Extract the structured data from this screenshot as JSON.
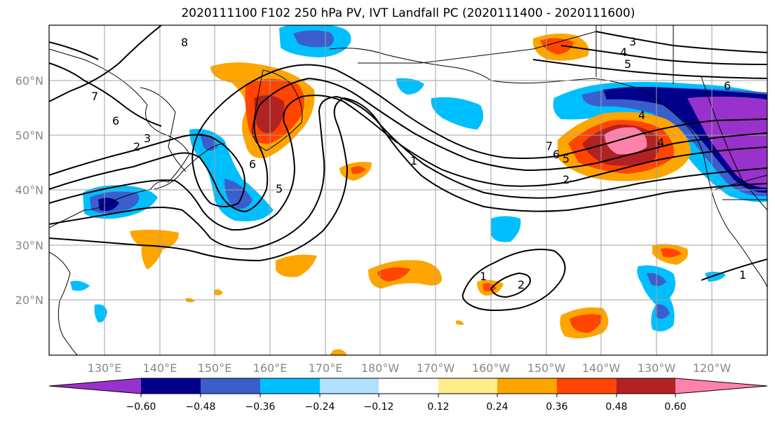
{
  "title": "2020111100 F102 250 hPa PV, IVT Landfall PC (2020111400 - 2020111600)",
  "map": {
    "lat_ticks": [
      "60°N",
      "50°N",
      "40°N",
      "30°N",
      "20°N"
    ],
    "lon_ticks": [
      "130°E",
      "140°E",
      "150°E",
      "160°E",
      "170°E",
      "180°W",
      "170°W",
      "160°W",
      "150°W",
      "140°W",
      "130°W",
      "120°W"
    ],
    "contour_labels": [
      "8",
      "7",
      "6",
      "3",
      "2",
      "6",
      "5",
      "1",
      "7",
      "6",
      "5",
      "2",
      "4",
      "4",
      "3",
      "4",
      "5",
      "6",
      "1",
      "2",
      "1"
    ]
  },
  "colorbar": {
    "colors": [
      "#9932cc",
      "#00008b",
      "#3a5fcd",
      "#00bfff",
      "#b0e2ff",
      "#ffffff",
      "#ffec8b",
      "#ffa500",
      "#ff4500",
      "#b22222",
      "#ff82ab"
    ],
    "tick_labels": [
      "−0.60",
      "−0.48",
      "−0.36",
      "−0.24",
      "−0.12",
      "0.12",
      "0.24",
      "0.36",
      "0.48",
      "0.60"
    ]
  }
}
